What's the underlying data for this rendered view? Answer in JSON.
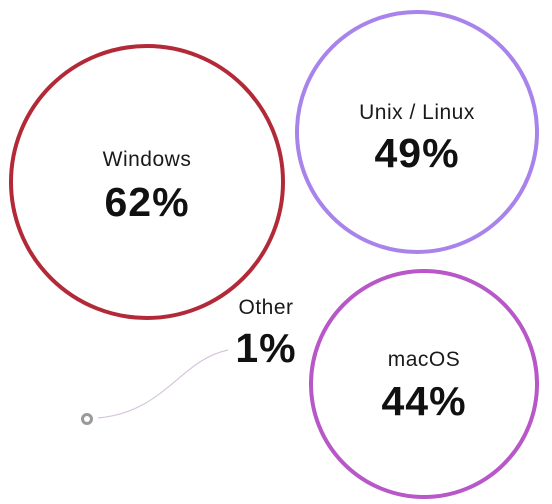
{
  "chart_data": {
    "type": "bubble",
    "unit": "%",
    "items": [
      {
        "label": "Windows",
        "value": 62,
        "display": "62%",
        "color": "#b22a38"
      },
      {
        "label": "Unix / Linux",
        "value": 49,
        "display": "49%",
        "color": "#a883ec"
      },
      {
        "label": "macOS",
        "value": 44,
        "display": "44%",
        "color": "#b857c8"
      },
      {
        "label": "Other",
        "value": 1,
        "display": "1%",
        "color": "#9a9a9a"
      }
    ]
  }
}
